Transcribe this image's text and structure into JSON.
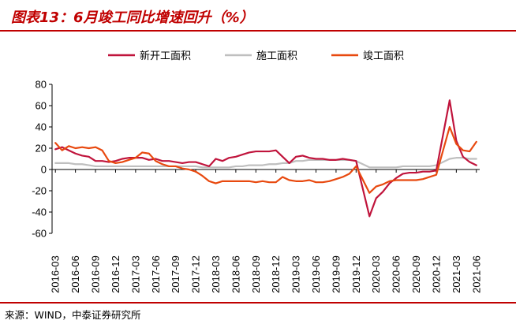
{
  "title": "图表13：6月竣工同比增速回升（%）",
  "source": "来源：WIND，中泰证券研究所",
  "colors": {
    "brand": "#c00000"
  },
  "chart_data": {
    "type": "line",
    "title": "图表13：6月竣工同比增速回升（%）",
    "xlabel": "",
    "ylabel": "",
    "ylim": [
      -60,
      80
    ],
    "yticks": [
      80,
      60,
      40,
      20,
      0,
      -20,
      -40,
      -60
    ],
    "legend_position": "top",
    "grid": false,
    "x": [
      "2016-03",
      "2016-04",
      "2016-05",
      "2016-06",
      "2016-07",
      "2016-08",
      "2016-09",
      "2016-10",
      "2016-11",
      "2016-12",
      "2017-01",
      "2017-02",
      "2017-03",
      "2017-04",
      "2017-05",
      "2017-06",
      "2017-07",
      "2017-08",
      "2017-09",
      "2017-10",
      "2017-11",
      "2017-12",
      "2018-01",
      "2018-02",
      "2018-03",
      "2018-04",
      "2018-05",
      "2018-06",
      "2018-07",
      "2018-08",
      "2018-09",
      "2018-10",
      "2018-11",
      "2018-12",
      "2019-01",
      "2019-02",
      "2019-03",
      "2019-04",
      "2019-05",
      "2019-06",
      "2019-07",
      "2019-08",
      "2019-09",
      "2019-10",
      "2019-11",
      "2019-12",
      "2020-01",
      "2020-02",
      "2020-03",
      "2020-04",
      "2020-05",
      "2020-06",
      "2020-07",
      "2020-08",
      "2020-09",
      "2020-10",
      "2020-11",
      "2020-12",
      "2021-01",
      "2021-02",
      "2021-03",
      "2021-04",
      "2021-05",
      "2021-06"
    ],
    "xticks": [
      "2016-03",
      "2016-06",
      "2016-09",
      "2016-12",
      "2017-03",
      "2017-06",
      "2017-09",
      "2017-12",
      "2018-03",
      "2018-06",
      "2018-09",
      "2018-12",
      "2019-03",
      "2019-06",
      "2019-09",
      "2019-12",
      "2020-03",
      "2020-06",
      "2020-09",
      "2020-12",
      "2021-03",
      "2021-06"
    ],
    "series": [
      {
        "name": "新开工面积",
        "color": "#c0143c",
        "values": [
          19,
          21,
          18,
          15,
          13,
          12,
          8,
          8,
          7,
          8,
          10,
          11,
          11,
          11,
          9,
          10,
          8,
          8,
          7,
          6,
          7,
          7,
          5,
          3,
          10,
          8,
          11,
          12,
          14,
          16,
          17,
          17,
          17,
          18,
          12,
          6,
          12,
          13,
          11,
          10,
          10,
          9,
          9,
          10,
          9,
          8,
          null,
          -44,
          -27,
          -21,
          -13,
          -8,
          -4,
          -3,
          -3,
          -2,
          -2,
          -1,
          null,
          65,
          27,
          12,
          7,
          4
        ]
      },
      {
        "name": "施工面积",
        "color": "#bfbfbf",
        "values": [
          6,
          6,
          6,
          5,
          5,
          4,
          3,
          3,
          3,
          3,
          3,
          3,
          3,
          3,
          3,
          3,
          3,
          3,
          3,
          3,
          3,
          3,
          2,
          2,
          2,
          2,
          2,
          3,
          3,
          4,
          4,
          4,
          5,
          5,
          6,
          6,
          8,
          8,
          9,
          9,
          9,
          9,
          9,
          9,
          9,
          8,
          null,
          2,
          2,
          2,
          2,
          2,
          3,
          3,
          3,
          3,
          3,
          4,
          null,
          10,
          11,
          11,
          10,
          10
        ]
      },
      {
        "name": "竣工面积",
        "color": "#e8490f",
        "values": [
          25,
          18,
          22,
          20,
          21,
          20,
          21,
          18,
          8,
          6,
          7,
          9,
          11,
          16,
          15,
          8,
          5,
          3,
          3,
          1,
          0,
          -2,
          -6,
          -11,
          -13,
          -11,
          -11,
          -11,
          -11,
          -11,
          -12,
          -11,
          -12,
          -12,
          -7,
          -10,
          -11,
          -11,
          -10,
          -12,
          -12,
          -11,
          -9,
          -7,
          -4,
          3,
          null,
          -22,
          -16,
          -14,
          -11,
          -10,
          -10,
          -10,
          -10,
          -9,
          -7,
          -5,
          null,
          40,
          24,
          18,
          17,
          26
        ]
      }
    ]
  }
}
